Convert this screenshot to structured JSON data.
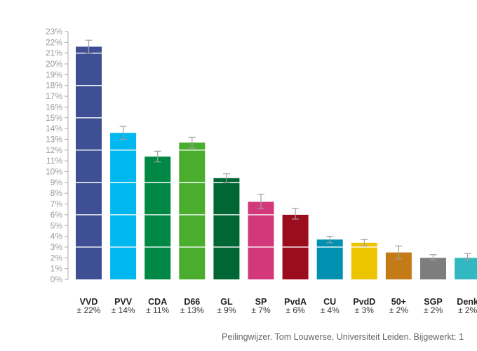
{
  "chart_data": {
    "type": "bar",
    "categories": [
      "VVD",
      "PVV",
      "CDA",
      "D66",
      "GL",
      "SP",
      "PvdA",
      "CU",
      "PvdD",
      "50+",
      "SGP",
      "Denk"
    ],
    "values": [
      21.6,
      13.6,
      11.4,
      12.7,
      9.4,
      7.2,
      6.0,
      3.7,
      3.4,
      2.5,
      2.0,
      2.0
    ],
    "error_low": [
      21.0,
      13.0,
      10.9,
      12.2,
      9.0,
      6.6,
      5.6,
      3.4,
      3.1,
      1.9,
      1.8,
      1.8
    ],
    "error_high": [
      22.2,
      14.2,
      11.9,
      13.2,
      9.8,
      7.9,
      6.6,
      4.0,
      3.7,
      3.1,
      2.3,
      2.4
    ],
    "margins": [
      "± 22%",
      "± 14%",
      "± 11%",
      "± 13%",
      "± 9%",
      "± 7%",
      "± 6%",
      "± 4%",
      "± 3%",
      "± 2%",
      "± 2%",
      "± 2%"
    ],
    "colors": [
      "#3f4f93",
      "#00b7ef",
      "#008844",
      "#4aad2e",
      "#006633",
      "#d2387a",
      "#9b0d1c",
      "#0090b0",
      "#ecc500",
      "#c47a16",
      "#7d7d7d",
      "#32b8c0"
    ],
    "ylim": [
      0,
      23
    ],
    "ytick_step": 1,
    "ytick_labels": [
      "0%",
      "1%",
      "2%",
      "3%",
      "4%",
      "5%",
      "6%",
      "7%",
      "8%",
      "9%",
      "10%",
      "11%",
      "12%",
      "13%",
      "14%",
      "15%",
      "16%",
      "17%",
      "18%",
      "19%",
      "20%",
      "21%",
      "22%",
      "23%"
    ],
    "grid": false,
    "bar_segment_lines": true,
    "credit": "Peilingwijzer. Tom Louwerse, Universiteit Leiden. Bijgewerkt: 1"
  }
}
